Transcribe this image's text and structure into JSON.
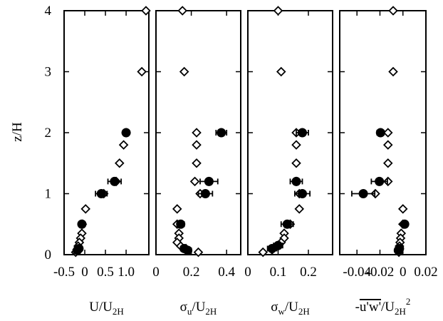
{
  "ylabel": "z/H",
  "chart_data": [
    {
      "type": "scatter",
      "xlabel": {
        "main": "U/U",
        "sub": "2H",
        "sup": ""
      },
      "xlim": [
        -0.5,
        1.55
      ],
      "xticks": [
        -0.5,
        0,
        0.5,
        1
      ],
      "xticklabels": [
        "-0.5",
        "0",
        "0.5",
        "1.0"
      ],
      "ylim": [
        0,
        4
      ],
      "yticks": [
        0,
        1,
        2,
        3,
        4
      ],
      "yticklabels": [
        "0",
        "1",
        "2",
        "3",
        "4"
      ],
      "series": [
        {
          "marker": "open-diamond",
          "points": [
            {
              "x": 1.48,
              "y": 4.0
            },
            {
              "x": 1.38,
              "y": 3.0
            },
            {
              "x": 1.0,
              "y": 2.0
            },
            {
              "x": 0.94,
              "y": 1.8
            },
            {
              "x": 0.84,
              "y": 1.5
            },
            {
              "x": 0.76,
              "y": 1.2
            },
            {
              "x": 0.46,
              "y": 1.0
            },
            {
              "x": 0.02,
              "y": 0.75
            },
            {
              "x": -0.06,
              "y": 0.5
            },
            {
              "x": -0.07,
              "y": 0.35
            },
            {
              "x": -0.1,
              "y": 0.27
            },
            {
              "x": -0.13,
              "y": 0.2
            },
            {
              "x": -0.16,
              "y": 0.14
            },
            {
              "x": -0.19,
              "y": 0.08
            },
            {
              "x": -0.22,
              "y": 0.04
            }
          ]
        },
        {
          "marker": "filled-circle",
          "points": [
            {
              "x": 1.0,
              "y": 2.0,
              "xerr": 0.04
            },
            {
              "x": 0.72,
              "y": 1.2,
              "xerr": 0.16
            },
            {
              "x": 0.4,
              "y": 1.0,
              "xerr": 0.14
            },
            {
              "x": -0.07,
              "y": 0.5,
              "xerr": 0.03
            },
            {
              "x": -0.14,
              "y": 0.1,
              "xerr": 0.02
            },
            {
              "x": -0.18,
              "y": 0.07,
              "xerr": 0.02
            }
          ]
        }
      ]
    },
    {
      "type": "scatter",
      "xlabel": {
        "main": "σ_u/U",
        "sub": "2H",
        "sup": ""
      },
      "xlim": [
        0,
        0.48
      ],
      "xticks": [
        0,
        0.2,
        0.4
      ],
      "xticklabels": [
        "0",
        "0.2",
        "0.4"
      ],
      "ylim": [
        0,
        4
      ],
      "series": [
        {
          "marker": "open-diamond",
          "points": [
            {
              "x": 0.15,
              "y": 4.0
            },
            {
              "x": 0.16,
              "y": 3.0
            },
            {
              "x": 0.23,
              "y": 2.0
            },
            {
              "x": 0.23,
              "y": 1.8
            },
            {
              "x": 0.23,
              "y": 1.5
            },
            {
              "x": 0.22,
              "y": 1.2
            },
            {
              "x": 0.25,
              "y": 1.0
            },
            {
              "x": 0.12,
              "y": 0.75
            },
            {
              "x": 0.12,
              "y": 0.5
            },
            {
              "x": 0.13,
              "y": 0.35
            },
            {
              "x": 0.13,
              "y": 0.27
            },
            {
              "x": 0.12,
              "y": 0.2
            },
            {
              "x": 0.14,
              "y": 0.14
            },
            {
              "x": 0.17,
              "y": 0.1
            },
            {
              "x": 0.24,
              "y": 0.04
            }
          ]
        },
        {
          "marker": "filled-circle",
          "points": [
            {
              "x": 0.37,
              "y": 2.0,
              "xerr": 0.03
            },
            {
              "x": 0.3,
              "y": 1.2,
              "xerr": 0.05
            },
            {
              "x": 0.28,
              "y": 1.0,
              "xerr": 0.04
            },
            {
              "x": 0.14,
              "y": 0.5,
              "xerr": 0.02
            },
            {
              "x": 0.16,
              "y": 0.1,
              "xerr": 0.02
            },
            {
              "x": 0.18,
              "y": 0.07,
              "xerr": 0.02
            }
          ]
        }
      ]
    },
    {
      "type": "scatter",
      "xlabel": {
        "main": "σ_w/U",
        "sub": "2H",
        "sup": ""
      },
      "xlim": [
        0,
        0.28
      ],
      "xticks": [
        0,
        0.1,
        0.2
      ],
      "xticklabels": [
        "0",
        "0.1",
        "0.2"
      ],
      "ylim": [
        0,
        4
      ],
      "series": [
        {
          "marker": "open-diamond",
          "points": [
            {
              "x": 0.1,
              "y": 4.0
            },
            {
              "x": 0.11,
              "y": 3.0
            },
            {
              "x": 0.16,
              "y": 2.0
            },
            {
              "x": 0.16,
              "y": 1.8
            },
            {
              "x": 0.16,
              "y": 1.5
            },
            {
              "x": 0.16,
              "y": 1.2
            },
            {
              "x": 0.17,
              "y": 1.0
            },
            {
              "x": 0.17,
              "y": 0.75
            },
            {
              "x": 0.14,
              "y": 0.5
            },
            {
              "x": 0.12,
              "y": 0.35
            },
            {
              "x": 0.12,
              "y": 0.27
            },
            {
              "x": 0.11,
              "y": 0.2
            },
            {
              "x": 0.1,
              "y": 0.14
            },
            {
              "x": 0.08,
              "y": 0.08
            },
            {
              "x": 0.05,
              "y": 0.04
            }
          ]
        },
        {
          "marker": "filled-circle",
          "points": [
            {
              "x": 0.18,
              "y": 2.0,
              "xerr": 0.02
            },
            {
              "x": 0.16,
              "y": 1.2,
              "xerr": 0.02
            },
            {
              "x": 0.18,
              "y": 1.0,
              "xerr": 0.025
            },
            {
              "x": 0.13,
              "y": 0.5,
              "xerr": 0.02
            },
            {
              "x": 0.1,
              "y": 0.15,
              "xerr": 0.015
            },
            {
              "x": 0.08,
              "y": 0.1,
              "xerr": 0.015
            }
          ]
        }
      ]
    },
    {
      "type": "scatter",
      "xlabel": {
        "main": "-u'w'/U",
        "sub": "2H",
        "sup": "2"
      },
      "xlim": [
        -0.055,
        0.02
      ],
      "xticks": [
        -0.04,
        -0.02,
        0,
        0.02
      ],
      "xticklabels": [
        "-0.04",
        "-0.02",
        "0",
        "0.02"
      ],
      "ylim": [
        0,
        4
      ],
      "series": [
        {
          "marker": "open-diamond",
          "points": [
            {
              "x": -0.0085,
              "y": 4.0
            },
            {
              "x": -0.0085,
              "y": 3.0
            },
            {
              "x": -0.013,
              "y": 2.0
            },
            {
              "x": -0.013,
              "y": 1.8
            },
            {
              "x": -0.013,
              "y": 1.5
            },
            {
              "x": -0.013,
              "y": 1.2
            },
            {
              "x": -0.024,
              "y": 1.0
            },
            {
              "x": 0.0,
              "y": 0.75
            },
            {
              "x": 0.0,
              "y": 0.5
            },
            {
              "x": -0.0015,
              "y": 0.35
            },
            {
              "x": -0.002,
              "y": 0.27
            },
            {
              "x": -0.0025,
              "y": 0.2
            },
            {
              "x": -0.003,
              "y": 0.14
            },
            {
              "x": -0.0035,
              "y": 0.08
            },
            {
              "x": -0.0035,
              "y": 0.04
            }
          ]
        },
        {
          "marker": "filled-circle",
          "points": [
            {
              "x": -0.0195,
              "y": 2.0,
              "xerr": 0.003
            },
            {
              "x": -0.0205,
              "y": 1.2,
              "xerr": 0.007
            },
            {
              "x": -0.0345,
              "y": 1.0,
              "xerr": 0.01
            },
            {
              "x": 0.0015,
              "y": 0.5,
              "xerr": 0.002
            },
            {
              "x": -0.003,
              "y": 0.1,
              "xerr": 0.001
            },
            {
              "x": -0.004,
              "y": 0.07,
              "xerr": 0.001
            }
          ]
        }
      ]
    }
  ]
}
